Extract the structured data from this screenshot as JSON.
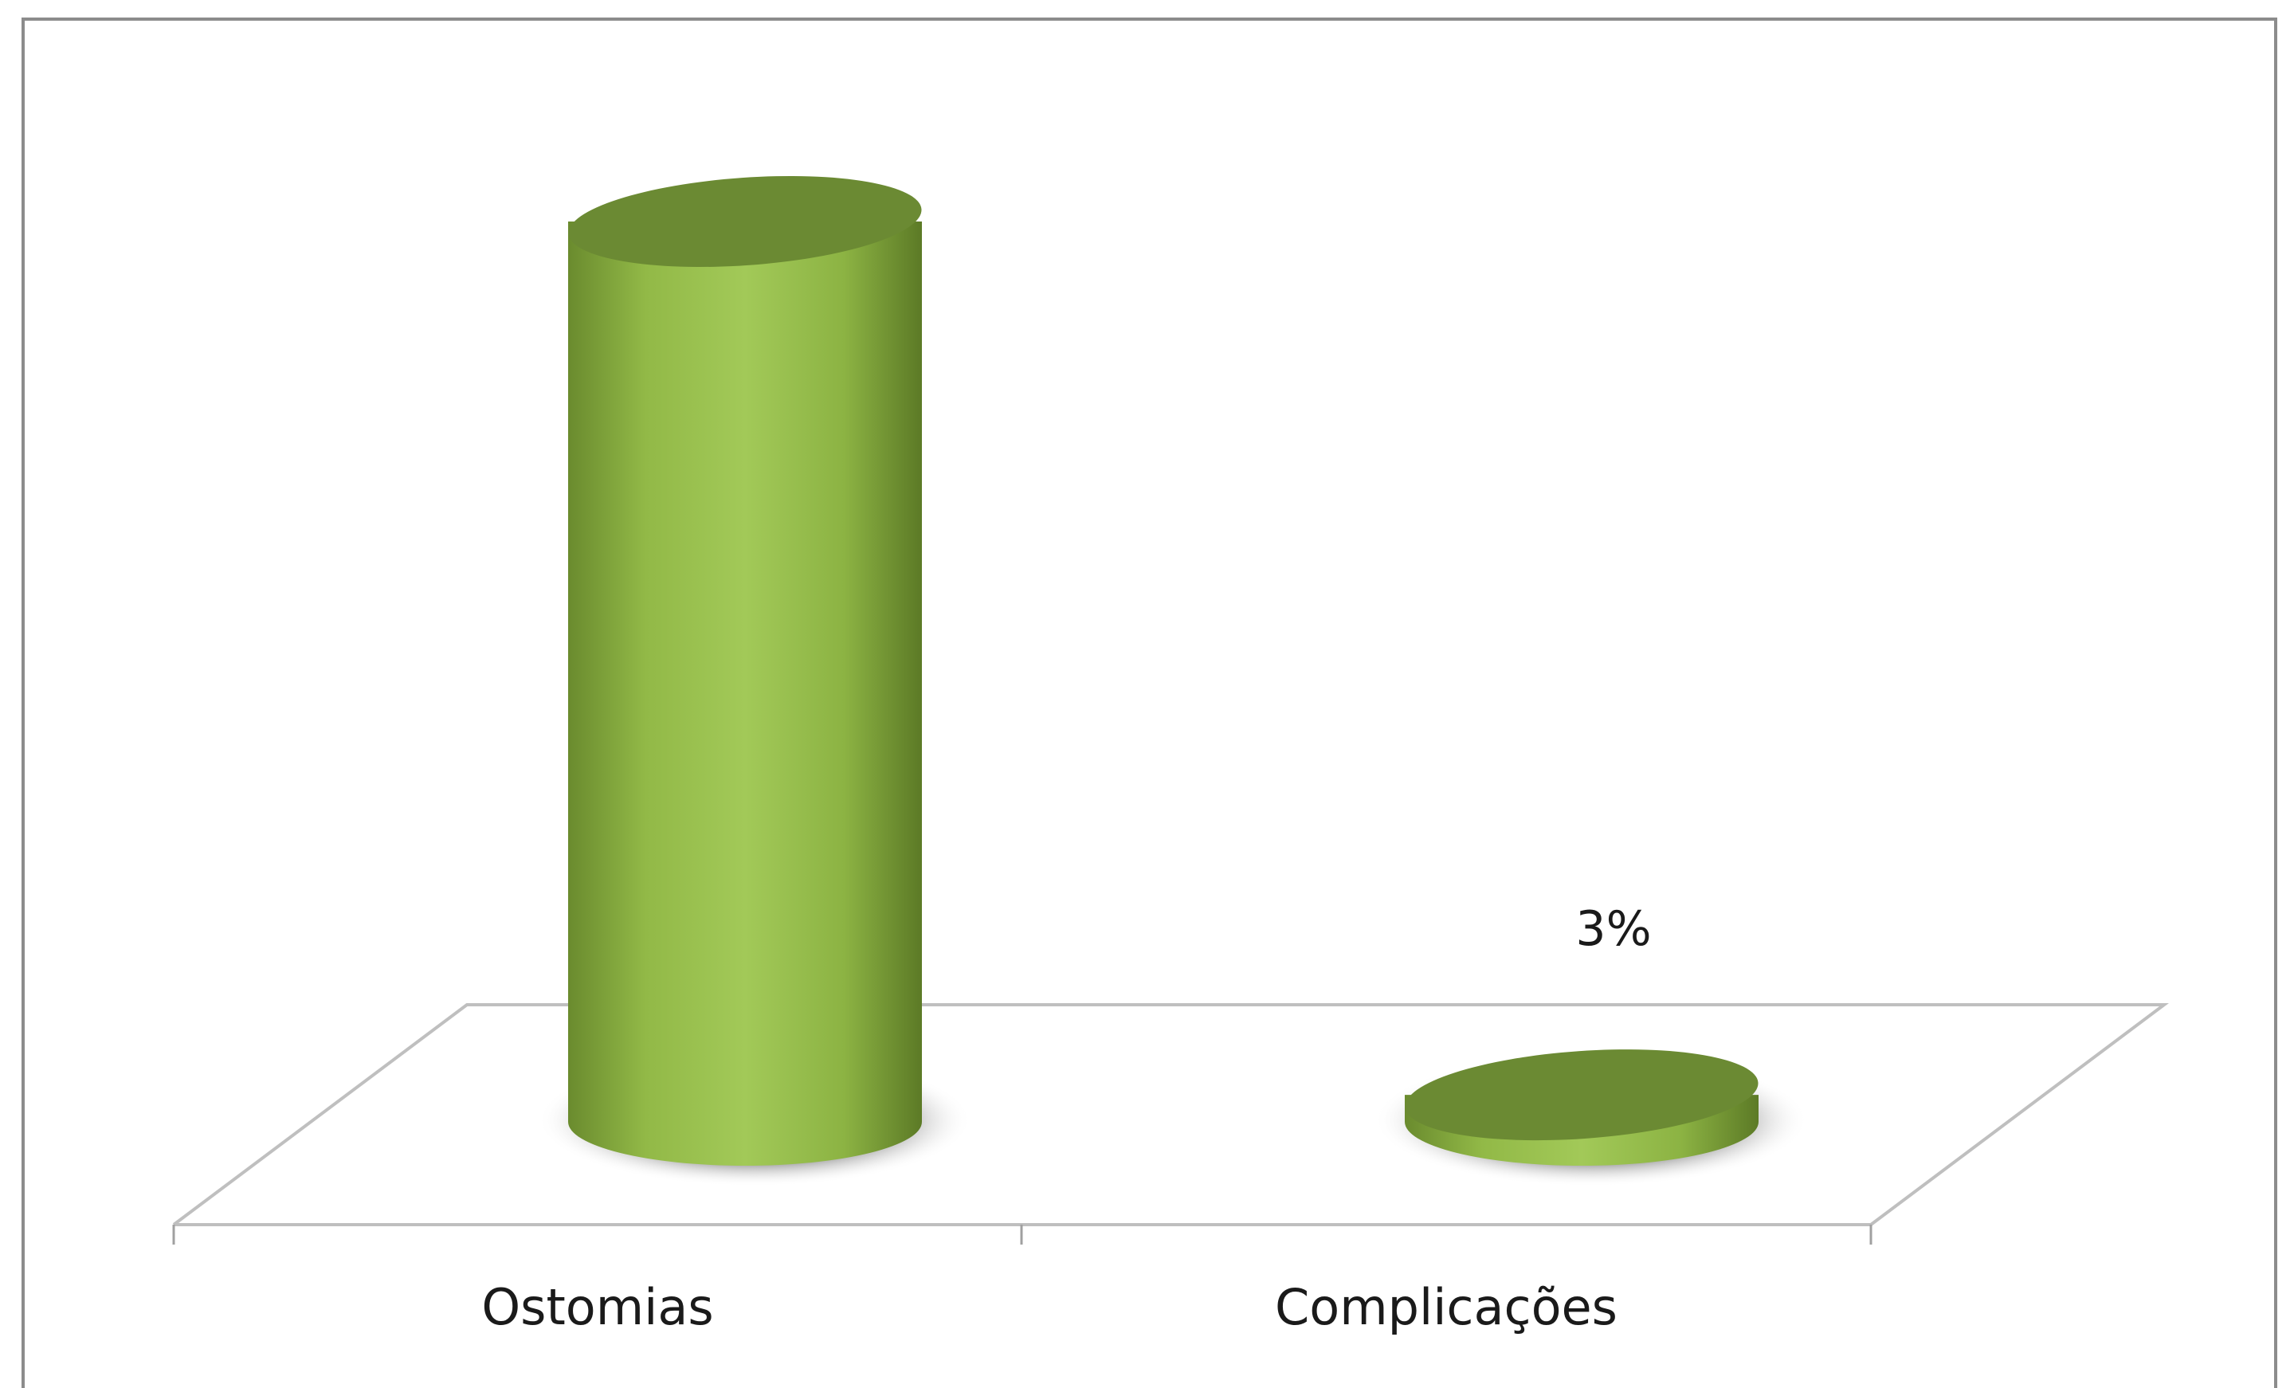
{
  "chart_data": {
    "type": "bar",
    "style": "3d-cylinder",
    "categories": [
      "Ostomias",
      "Complicações"
    ],
    "values": [
      100,
      3
    ],
    "unit": "%",
    "data_labels": [
      "",
      "3%"
    ],
    "ylim": [
      0,
      100
    ],
    "grid": false,
    "legend": "none",
    "colors": {
      "bar_body": "#9bc24f",
      "bar_body_dark": "#5f7d2a",
      "bar_top": "#6b8a33",
      "small_bar": "#4a5f24",
      "floor_line": "#bfbfbf",
      "shadow": "#7a7a7a"
    }
  }
}
